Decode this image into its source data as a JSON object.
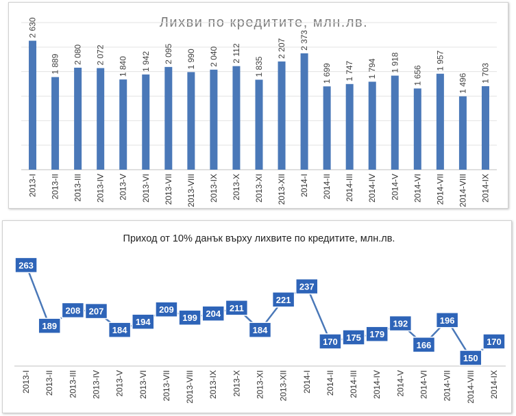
{
  "chart_data": [
    {
      "type": "bar",
      "title": "Лихви по кредитите, млн.лв.",
      "categories": [
        "2013-I",
        "2013-II",
        "2013-III",
        "2013-IV",
        "2013-V",
        "2013-VI",
        "2013-VII",
        "2013-VIII",
        "2013-IX",
        "2013-X",
        "2013-XI",
        "2013-XII",
        "2014-I",
        "2014-II",
        "2014-III",
        "2014-IV",
        "2014-V",
        "2014-VI",
        "2014-VII",
        "2014-VIII",
        "2014-IX"
      ],
      "values": [
        2630,
        1889,
        2080,
        2072,
        1840,
        1942,
        2095,
        1990,
        2040,
        2112,
        1835,
        2207,
        2373,
        1699,
        1747,
        1794,
        1918,
        1656,
        1957,
        1496,
        1703
      ],
      "value_labels": [
        "2 630",
        "1 889",
        "2 080",
        "2 072",
        "1 840",
        "1 942",
        "2 095",
        "1 990",
        "2 040",
        "2 112",
        "1 835",
        "2 207",
        "2 373",
        "1 699",
        "1 747",
        "1 794",
        "1 918",
        "1 656",
        "1 957",
        "1 496",
        "1 703"
      ],
      "ylim": [
        0,
        3000
      ],
      "grid": true,
      "color": "#4a78b8",
      "title_color": "#7f7f7f"
    },
    {
      "type": "line",
      "title": "Приход от 10% данък върху лихвите по кредитите, млн.лв.",
      "categories": [
        "2013-I",
        "2013-II",
        "2013-III",
        "2013-IV",
        "2013-V",
        "2013-VI",
        "2013-VII",
        "2013-VIII",
        "2013-IX",
        "2013-X",
        "2013-XI",
        "2013-XII",
        "2014-I",
        "2014-II",
        "2014-III",
        "2014-IV",
        "2014-V",
        "2014-VI",
        "2014-VII",
        "2014-VIII",
        "2014-IX"
      ],
      "values": [
        263,
        189,
        208,
        207,
        184,
        194,
        209,
        199,
        204,
        211,
        184,
        221,
        237,
        170,
        175,
        179,
        192,
        166,
        196,
        150,
        170
      ],
      "ylim": [
        140,
        270
      ],
      "grid": false,
      "color": "#4a78b8",
      "label_fill": "#2e64b8",
      "title_color": "#222222"
    }
  ]
}
